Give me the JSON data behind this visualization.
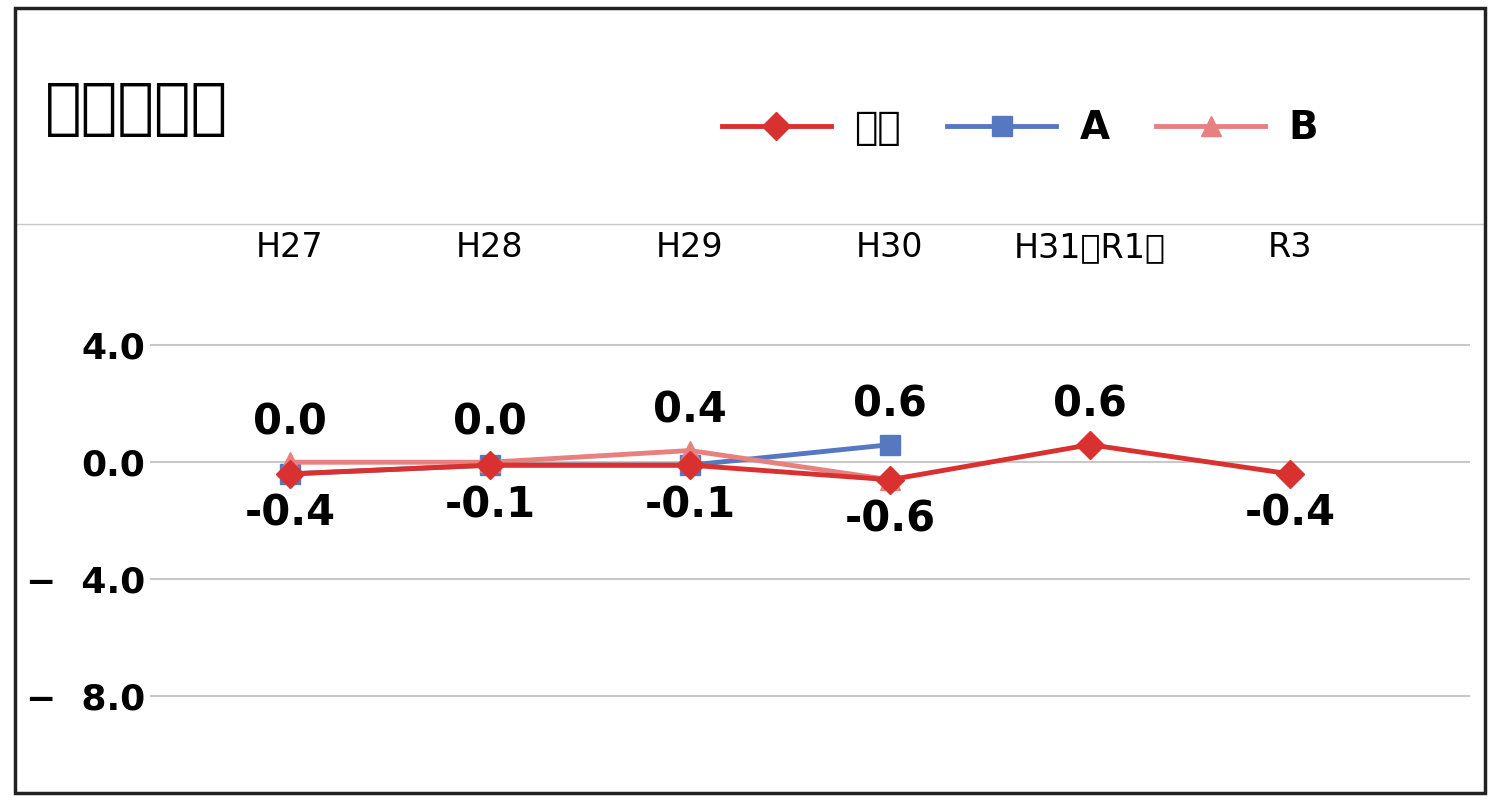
{
  "title": "小学校国語",
  "x_labels": [
    "H27",
    "H28",
    "H29",
    "H30",
    "H31（R1）",
    "R3"
  ],
  "x_positions": [
    1,
    2,
    3,
    4,
    5,
    6
  ],
  "kokugo_values": [
    -0.4,
    -0.1,
    -0.1,
    -0.6,
    0.6,
    -0.4
  ],
  "A_values": [
    -0.4,
    -0.1,
    -0.1,
    0.6,
    null,
    null
  ],
  "B_values": [
    0.0,
    0.0,
    0.4,
    -0.6,
    null,
    null
  ],
  "kokugo_color": "#d93030",
  "A_color": "#5578c0",
  "B_color": "#e88080",
  "kokugo_label": "国語",
  "A_label": "A",
  "B_label": "B",
  "ylim": [
    -10.5,
    6.5
  ],
  "yticks": [
    4.0,
    0.0,
    -4.0,
    -8.0
  ],
  "background_color": "#ffffff",
  "border_color": "#222222",
  "title_fontsize": 44,
  "label_fontsize": 26,
  "annotation_fontsize": 30,
  "legend_fontsize": 28,
  "x_label_fontsize": 24,
  "grid_color": "#c8c8c8",
  "top_annots": [
    [
      1,
      0.0,
      "0.0"
    ],
    [
      2,
      0.0,
      "0.0"
    ],
    [
      3,
      0.4,
      "0.4"
    ],
    [
      4,
      0.6,
      "0.6"
    ],
    [
      5,
      0.6,
      "0.6"
    ]
  ],
  "bot_annots": [
    [
      1,
      -0.4,
      "-0.4"
    ],
    [
      2,
      -0.1,
      "-0.1"
    ],
    [
      3,
      -0.1,
      "-0.1"
    ],
    [
      4,
      -0.6,
      "-0.6"
    ],
    [
      6,
      -0.4,
      "-0.4"
    ]
  ]
}
